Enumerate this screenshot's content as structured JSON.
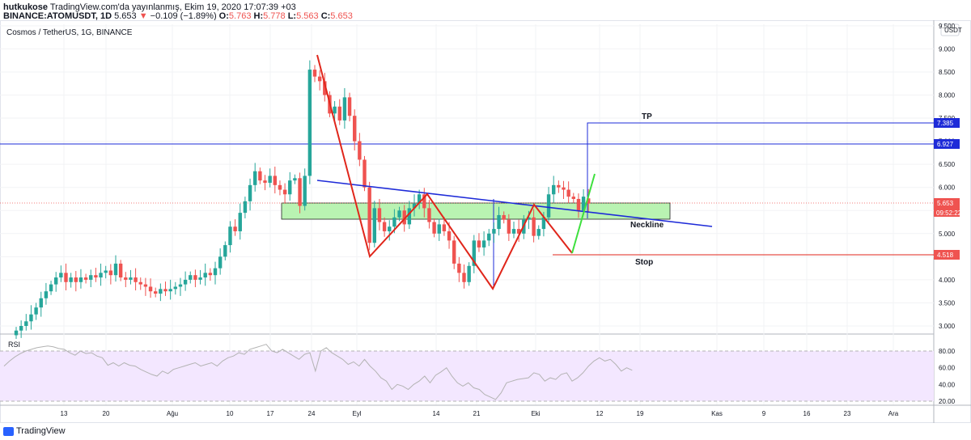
{
  "header": {
    "author": "hutkukose",
    "published": "TradingView.com'da yayınlanmış, Ekim 19, 2020 17:07:39 +03",
    "symbol": "BINANCE:ATOMUSDT, 1D",
    "last": "5.653",
    "change_arrow": "▼",
    "change": "−0.109 (−1.89%)",
    "o_label": "O:",
    "o": "5.763",
    "h_label": "H:",
    "h": "5.778",
    "l_label": "L:",
    "l": "5.563",
    "c_label": "C:",
    "c": "5.653"
  },
  "chart_title": "Cosmos / TetherUS, 1G, BINANCE",
  "currency_badge": "USDT",
  "footer_brand": "TradingView",
  "colors": {
    "up": "#26a69a",
    "down": "#ef5350",
    "blue": "#1e2bd8",
    "pattern_red": "#e0261b",
    "pattern_green": "#3ee03e",
    "zone_fill": "#b9f3b2",
    "rsi_fill": "#f3e7ff",
    "rsi_line": "#b3b3b3"
  },
  "chart_data": [
    {
      "type": "candlestick",
      "title": "Cosmos / TetherUS, 1G, BINANCE",
      "y_ticks": [
        "3.000",
        "3.500",
        "4.000",
        "4.500",
        "5.000",
        "5.500",
        "6.000",
        "6.500",
        "7.000",
        "7.500",
        "8.000",
        "8.500",
        "9.000",
        "9.500"
      ],
      "x_ticks": [
        "13",
        "20",
        "Ağu",
        "10",
        "17",
        "24",
        "Eyl",
        "14",
        "21",
        "Eki",
        "12",
        "19",
        "Kas",
        "9",
        "16",
        "23",
        "Ara"
      ],
      "ylim": [
        2.85,
        9.55
      ],
      "closes": [
        2.9,
        3.0,
        3.1,
        3.25,
        3.4,
        3.6,
        3.75,
        3.9,
        4.05,
        4.15,
        3.95,
        4.05,
        3.95,
        4.05,
        4.0,
        4.1,
        4.05,
        4.15,
        4.2,
        4.1,
        4.35,
        4.05,
        4.0,
        4.05,
        3.95,
        3.9,
        3.85,
        3.75,
        3.7,
        3.8,
        3.75,
        3.8,
        3.85,
        3.9,
        4.0,
        4.1,
        4.0,
        4.05,
        4.15,
        4.1,
        4.25,
        4.5,
        4.75,
        5.15,
        5.05,
        5.45,
        5.7,
        6.05,
        6.35,
        6.15,
        6.1,
        6.25,
        6.05,
        5.95,
        5.85,
        6.15,
        6.2,
        5.6,
        6.25,
        8.55,
        8.4,
        8.3,
        8.0,
        7.6,
        7.75,
        7.45,
        7.95,
        7.55,
        7.0,
        6.6,
        6.0,
        4.8,
        5.55,
        5.25,
        5.05,
        5.15,
        5.35,
        5.5,
        5.2,
        5.55,
        5.65,
        5.85,
        5.55,
        5.25,
        5.0,
        5.2,
        5.05,
        4.85,
        4.35,
        4.15,
        3.95,
        4.3,
        4.85,
        4.7,
        4.85,
        5.0,
        5.1,
        5.4,
        5.3,
        5.0,
        5.1,
        5.0,
        5.3,
        5.35,
        4.95,
        5.1,
        5.35,
        5.85,
        6.05,
        6.0,
        5.95,
        5.8,
        5.75,
        5.5,
        5.8,
        5.65
      ],
      "ohlc_last": {
        "o": 5.763,
        "h": 5.778,
        "l": 5.563,
        "c": 5.653
      },
      "annotations": {
        "price_labels": [
          "7.385",
          "6.927",
          "5.653",
          "4.518"
        ],
        "countdown": "09:52:22",
        "text": [
          "TP",
          "Neckline",
          "Stop"
        ]
      }
    },
    {
      "type": "line",
      "title": "RSI",
      "ylim": [
        15,
        90
      ],
      "y_ticks": [
        "80.00",
        "60.00",
        "40.00",
        "20.00"
      ],
      "values": [
        62,
        68,
        73,
        77,
        80,
        82,
        84,
        85,
        86,
        85,
        83,
        82,
        78,
        75,
        80,
        77,
        78,
        74,
        72,
        63,
        66,
        62,
        66,
        63,
        62,
        58,
        55,
        52,
        50,
        56,
        53,
        58,
        60,
        62,
        64,
        66,
        62,
        64,
        66,
        62,
        68,
        72,
        74,
        78,
        76,
        82,
        84,
        86,
        88,
        80,
        78,
        82,
        78,
        74,
        70,
        76,
        78,
        56,
        80,
        84,
        78,
        74,
        70,
        64,
        67,
        62,
        70,
        62,
        56,
        48,
        44,
        34,
        40,
        38,
        34,
        40,
        44,
        50,
        42,
        51,
        55,
        60,
        50,
        42,
        38,
        42,
        36,
        34,
        28,
        25,
        22,
        30,
        42,
        44,
        46,
        47,
        48,
        54,
        52,
        44,
        48,
        46,
        52,
        54,
        44,
        48,
        54,
        62,
        68,
        72,
        68,
        70,
        64,
        56,
        60,
        57
      ]
    }
  ]
}
